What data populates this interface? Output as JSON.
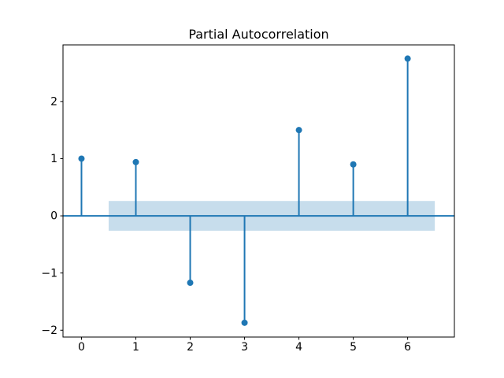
{
  "chart_data": {
    "type": "stem",
    "title": "Partial Autocorrelation",
    "x": [
      0,
      1,
      2,
      3,
      4,
      5,
      6
    ],
    "values": [
      1.0,
      0.94,
      -1.17,
      -1.87,
      1.5,
      0.9,
      2.75
    ],
    "baseline_y": 0,
    "confidence_band": {
      "x_start": 0.5,
      "x_end": 6.5,
      "y_low": -0.26,
      "y_high": 0.26
    },
    "xtick_values": [
      0,
      1,
      2,
      3,
      4,
      5,
      6
    ],
    "xtick_labels": [
      "0",
      "1",
      "2",
      "3",
      "4",
      "5",
      "6"
    ],
    "ytick_values": [
      -2,
      -1,
      0,
      1,
      2
    ],
    "ytick_labels": [
      "−2",
      "−1",
      "0",
      "1",
      "2"
    ],
    "xlim": [
      -0.34,
      6.86
    ],
    "ylim": [
      -2.12,
      2.99
    ],
    "grid": false,
    "legend": "none",
    "colors": {
      "stem": "#1f77b4",
      "marker": "#1f77b4",
      "baseline": "#1f77b4",
      "band": "#1f77b4",
      "band_opacity": 0.25,
      "spine": "#000000",
      "tick": "#000000",
      "text": "#000000",
      "background": "#ffffff"
    }
  }
}
